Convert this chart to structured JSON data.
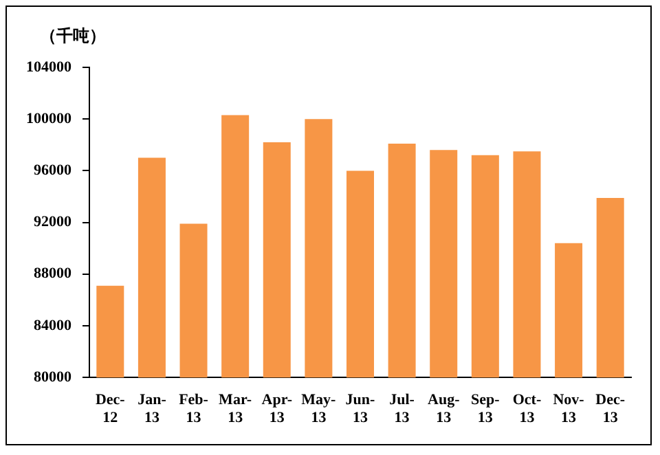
{
  "chart_data": {
    "type": "bar",
    "ylabel": "（千吨）",
    "categories": [
      "Dec-12",
      "Jan-13",
      "Feb-13",
      "Mar-13",
      "Apr-13",
      "May-13",
      "Jun-13",
      "Jul-13",
      "Aug-13",
      "Sep-13",
      "Oct-13",
      "Nov-13",
      "Dec-13"
    ],
    "values": [
      87100,
      97000,
      91900,
      100300,
      98200,
      100000,
      96000,
      98100,
      97600,
      97200,
      97500,
      90400,
      93900
    ],
    "color": "#f79646",
    "ylim": [
      80000,
      104000
    ],
    "yticks": [
      80000,
      84000,
      88000,
      92000,
      96000,
      100000,
      104000
    ],
    "grid": false,
    "legend": false
  }
}
